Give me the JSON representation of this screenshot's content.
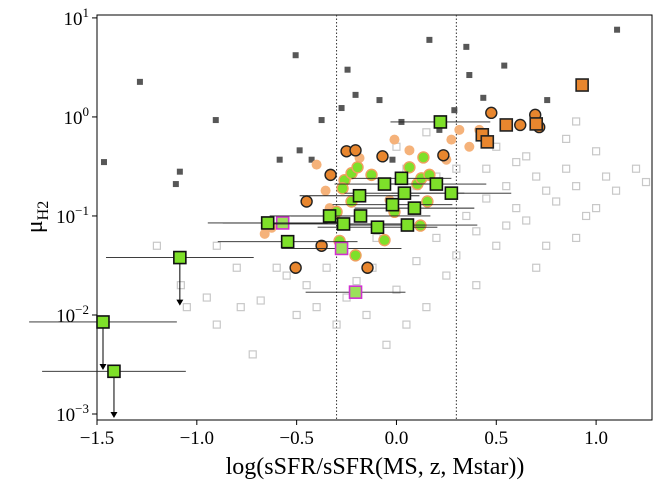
{
  "chart_data": {
    "type": "scatter",
    "xlabel": "log(sSFR/sSFR(MS, z, Mstar))",
    "ylabel": {
      "main": "μ",
      "sub": "H2"
    },
    "xlim": [
      -1.5,
      1.28
    ],
    "ylim": [
      0.00087,
      10.7
    ],
    "log_y": true,
    "xticks": [
      {
        "value": -1.5,
        "label": "−1.5"
      },
      {
        "value": -1.0,
        "label": "−1.0"
      },
      {
        "value": -0.5,
        "label": "−0.5"
      },
      {
        "value": 0.0,
        "label": "0.0"
      },
      {
        "value": 0.5,
        "label": "0.5"
      },
      {
        "value": 1.0,
        "label": "1.0"
      }
    ],
    "yticks": [
      {
        "value": 0.001,
        "label": "10^−3"
      },
      {
        "value": 0.01,
        "label": "10^−2"
      },
      {
        "value": 0.1,
        "label": "10^−1"
      },
      {
        "value": 1,
        "label": "10^0"
      },
      {
        "value": 10,
        "label": "10^1"
      }
    ],
    "vlines": [
      -0.3,
      0.3
    ],
    "series": [
      {
        "marker": "open-square",
        "color": "#c8c8c8",
        "x": [
          -1.08,
          -1.05,
          -0.95,
          -0.9,
          -0.78,
          -0.72,
          -0.68,
          -0.6,
          -0.55,
          -0.5,
          -0.45,
          -0.4,
          -0.35,
          -0.3,
          -0.25,
          -0.2,
          -0.15,
          -0.12,
          -0.05,
          0.0,
          0.05,
          0.1,
          0.15,
          0.2,
          0.25,
          0.3,
          0.35,
          0.4,
          0.45,
          0.5,
          0.55,
          0.6,
          0.65,
          0.7,
          0.75,
          0.8,
          0.85,
          0.9,
          0.95,
          1.0,
          1.05,
          1.1,
          1.2,
          1.25,
          0.5,
          0.6,
          0.3,
          0.2,
          0.1,
          0.4,
          0.7,
          0.9,
          -0.9,
          -1.2,
          -0.8,
          0.45,
          0.55,
          0.85,
          1.0,
          0.65,
          0.05,
          -0.1,
          0.0,
          0.15,
          0.75,
          0.9
        ],
        "values": [
          0.02,
          0.012,
          0.015,
          0.008,
          0.012,
          0.004,
          0.014,
          0.03,
          0.025,
          0.01,
          0.02,
          0.012,
          0.03,
          0.008,
          0.015,
          0.022,
          0.01,
          0.03,
          0.005,
          0.018,
          0.008,
          0.035,
          0.012,
          0.06,
          0.025,
          0.04,
          0.1,
          0.07,
          0.15,
          0.05,
          0.2,
          0.12,
          0.09,
          0.25,
          0.18,
          0.14,
          0.3,
          0.2,
          0.1,
          0.45,
          0.25,
          0.18,
          0.3,
          0.22,
          0.5,
          0.35,
          0.3,
          0.25,
          0.2,
          0.02,
          0.03,
          0.06,
          0.05,
          0.05,
          0.03,
          0.3,
          0.08,
          0.6,
          0.12,
          0.4,
          0.3,
          0.06,
          0.5,
          0.7,
          0.05,
          0.9
        ]
      },
      {
        "marker": "square",
        "color": "#3a3a3a",
        "x": [
          -1.285,
          -1.465,
          -1.085,
          -1.105,
          -0.905,
          -0.505,
          -0.245,
          -0.205,
          -0.275,
          -0.085,
          0.165,
          0.35,
          0.365,
          0.54,
          1.105,
          0.755,
          0.025,
          0.215,
          -0.375,
          -0.585,
          -0.485,
          -0.425,
          -0.02,
          0.29,
          0.435
        ],
        "values": [
          2.26,
          0.35,
          0.28,
          0.21,
          0.93,
          4.2,
          3.0,
          1.67,
          1.23,
          1.48,
          6.0,
          5.1,
          2.65,
          3.3,
          7.6,
          1.48,
          0.89,
          0.74,
          0.93,
          0.37,
          0.46,
          0.37,
          0.37,
          1.17,
          1.56
        ]
      },
      {
        "marker": "circle",
        "color": "#f5b27a",
        "x": [
          -0.355,
          -0.335,
          -0.66,
          -0.625,
          -0.185,
          -0.01,
          0.065,
          0.25,
          0.275,
          0.365,
          0.415,
          0.315,
          -0.4,
          -0.035
        ],
        "values": [
          0.18,
          0.12,
          0.066,
          0.076,
          0.385,
          0.59,
          0.46,
          0.37,
          0.59,
          0.5,
          0.74,
          0.74,
          0.33,
          0.145
        ]
      },
      {
        "marker": "circle",
        "color": "#e8862e",
        "edgecolor": "#222222",
        "x": [
          -0.45,
          -0.375,
          -0.33,
          -0.25,
          -0.205,
          -0.07,
          -0.145,
          -0.505,
          0.235,
          0.475,
          0.62,
          0.695,
          0.715
        ],
        "values": [
          0.14,
          0.05,
          0.26,
          0.45,
          0.46,
          0.4,
          0.03,
          0.03,
          0.41,
          1.1,
          0.83,
          1.05,
          0.79
        ]
      },
      {
        "marker": "square",
        "color": "#e8862e",
        "edgecolor": "#222222",
        "x": [
          0.43,
          0.455,
          0.55,
          0.7,
          0.93
        ],
        "values": [
          0.66,
          0.56,
          0.83,
          0.85,
          2.1
        ]
      },
      {
        "marker": "circle",
        "color": "#7ee02a",
        "edgecolor": "#f0a060",
        "x": [
          -0.26,
          -0.225,
          -0.195,
          -0.125,
          -0.27,
          -0.3,
          -0.225,
          -0.285,
          -0.205,
          -0.06,
          -0.01,
          0.065,
          0.105,
          0.125,
          0.135,
          0.165,
          0.155,
          0.12
        ],
        "values": [
          0.23,
          0.27,
          0.31,
          0.26,
          0.19,
          0.11,
          0.14,
          0.056,
          0.04,
          0.057,
          0.11,
          0.31,
          0.21,
          0.24,
          0.39,
          0.26,
          0.14,
          0.08
        ]
      },
      {
        "marker": "square",
        "color": "#9be05a",
        "edgecolor": "#d030d0",
        "x": [
          -0.57,
          -0.275,
          -0.205
        ],
        "values": [
          0.085,
          0.047,
          0.017
        ],
        "xerr": [
          0.3,
          0.3,
          0.25
        ]
      },
      {
        "marker": "square",
        "color": "#7ee02a",
        "edgecolor": "#111111",
        "x": [
          -1.47,
          -1.415,
          -1.085,
          -0.645,
          -0.545,
          -0.335,
          -0.265,
          -0.185,
          -0.18,
          -0.095,
          -0.06,
          -0.02,
          0.025,
          0.04,
          0.055,
          0.09,
          0.2,
          0.22,
          0.275
        ],
        "values": [
          0.0085,
          0.0027,
          0.038,
          0.085,
          0.055,
          0.1,
          0.083,
          0.16,
          0.1,
          0.077,
          0.21,
          0.13,
          0.24,
          0.17,
          0.081,
          0.12,
          0.21,
          0.89,
          0.17
        ],
        "xerr": [
          0.37,
          0.36,
          0.37,
          0.3,
          0.35,
          0.3,
          0.35,
          0.3,
          0.35,
          0.3,
          0.25,
          0.3,
          0.25,
          0.3,
          0.35,
          0.3,
          0.25,
          0.25,
          0.3
        ],
        "upper_limit": [
          true,
          true,
          true,
          false,
          false,
          false,
          false,
          false,
          false,
          false,
          false,
          false,
          false,
          false,
          false,
          false,
          false,
          false,
          false
        ]
      }
    ]
  }
}
